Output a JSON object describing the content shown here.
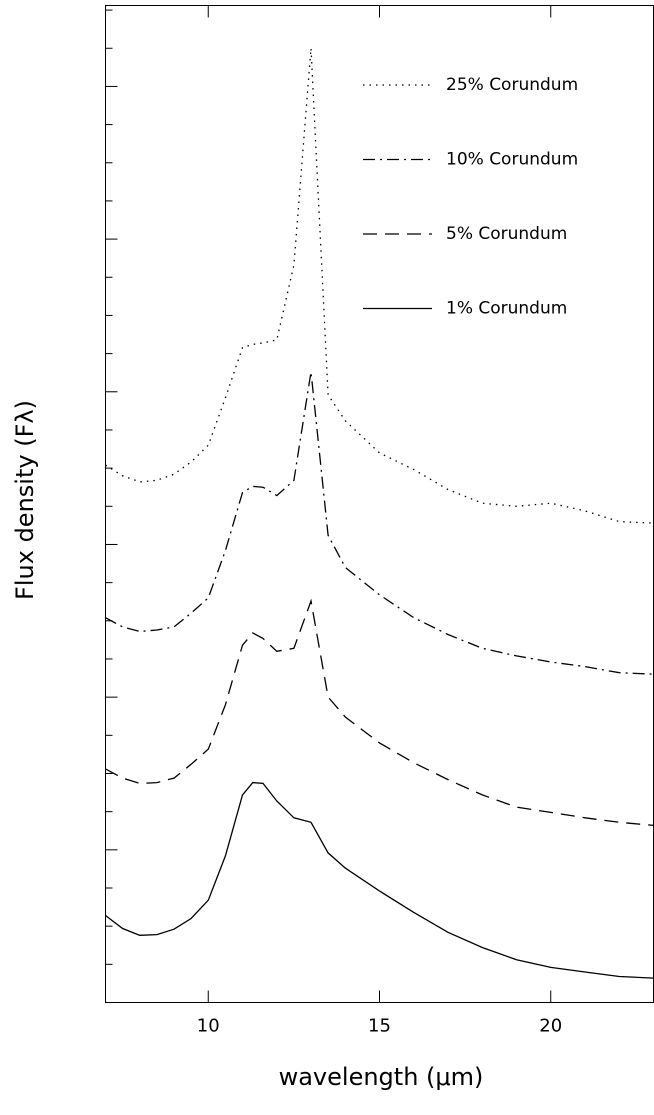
{
  "chart_data": {
    "type": "line",
    "xlabel": "wavelength (μm)",
    "ylabel": "Flux density (Fλ)",
    "x": [
      7,
      7.5,
      8,
      8.5,
      9,
      9.5,
      10,
      10.5,
      11,
      11.3,
      11.6,
      12,
      12.5,
      13,
      13.5,
      14,
      15,
      16,
      17,
      18,
      19,
      20,
      21,
      22,
      23
    ],
    "series": [
      {
        "name": "25% Corundum",
        "color": "#000000",
        "style": "dotted",
        "values": [
          3.52,
          3.45,
          3.41,
          3.42,
          3.46,
          3.54,
          3.65,
          3.96,
          4.29,
          4.31,
          4.32,
          4.34,
          4.83,
          6.25,
          3.98,
          3.81,
          3.6,
          3.49,
          3.36,
          3.27,
          3.25,
          3.27,
          3.22,
          3.15,
          3.14
        ]
      },
      {
        "name": "10% Corundum",
        "color": "#000000",
        "style": "dashdot",
        "values": [
          2.52,
          2.46,
          2.43,
          2.44,
          2.46,
          2.55,
          2.65,
          2.96,
          3.34,
          3.38,
          3.375,
          3.32,
          3.42,
          4.13,
          3.06,
          2.85,
          2.67,
          2.52,
          2.41,
          2.32,
          2.27,
          2.23,
          2.2,
          2.16,
          2.15
        ]
      },
      {
        "name": "5% Corundum",
        "color": "#000000",
        "style": "dashed",
        "values": [
          1.53,
          1.47,
          1.435,
          1.44,
          1.47,
          1.56,
          1.66,
          1.95,
          2.34,
          2.42,
          2.385,
          2.3,
          2.32,
          2.63,
          2.0,
          1.87,
          1.7,
          1.57,
          1.46,
          1.36,
          1.28,
          1.245,
          1.21,
          1.18,
          1.16
        ]
      },
      {
        "name": "1% Corundum",
        "color": "#000000",
        "style": "solid",
        "values": [
          0.57,
          0.485,
          0.44,
          0.445,
          0.48,
          0.55,
          0.67,
          0.96,
          1.36,
          1.44,
          1.435,
          1.32,
          1.21,
          1.18,
          0.98,
          0.88,
          0.73,
          0.59,
          0.46,
          0.36,
          0.28,
          0.23,
          0.2,
          0.17,
          0.16
        ]
      }
    ],
    "xlim": [
      7,
      23
    ],
    "xticks": [
      10,
      15,
      20
    ],
    "ylim": [
      0,
      6.53
    ],
    "yticks": [
      0.25,
      0.5,
      0.75,
      1,
      1.25,
      1.5,
      1.75,
      2,
      2.25,
      2.5,
      2.75,
      3,
      3.25,
      3.5,
      3.75,
      4,
      4.25,
      4.5,
      4.75,
      5,
      5.25,
      5.5,
      5.75,
      6,
      6.25,
      6.5
    ],
    "legend": "upper right"
  }
}
